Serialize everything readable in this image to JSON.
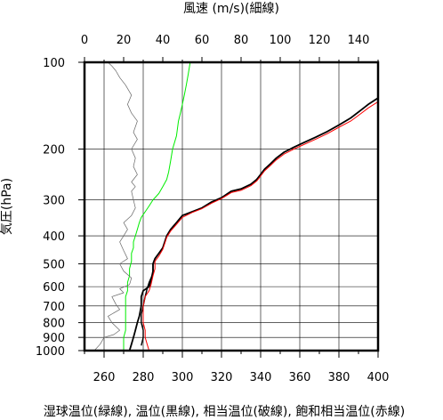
{
  "chart_data": {
    "type": "line",
    "top_axis": {
      "label": "風速 (m/s)(細線)",
      "range": [
        0,
        150
      ],
      "ticks": [
        0,
        20,
        40,
        60,
        80,
        100,
        120,
        140
      ]
    },
    "x_axis": {
      "label": "湿球温位(緑線), 温位(黒線), 相当温位(破線), 飽和相当温位(赤線)",
      "range": [
        250,
        400
      ],
      "ticks": [
        260,
        280,
        300,
        320,
        340,
        360,
        380,
        400
      ]
    },
    "y_axis": {
      "label": "気圧(hPa)",
      "scale": "log",
      "reversed": true,
      "range": [
        100,
        1000
      ],
      "ticks": [
        100,
        200,
        300,
        400,
        500,
        600,
        700,
        800,
        900,
        1000
      ]
    },
    "grid": true,
    "series": [
      {
        "color": "#000000",
        "axis": "bottom",
        "points": [
          [
            273,
            1000
          ],
          [
            274,
            950
          ],
          [
            275,
            900
          ],
          [
            276,
            850
          ],
          [
            277,
            800
          ],
          [
            278,
            760
          ],
          [
            279,
            700
          ],
          [
            279,
            650
          ],
          [
            280,
            620
          ],
          [
            283,
            600
          ],
          [
            284,
            570
          ],
          [
            285,
            530
          ],
          [
            285,
            500
          ],
          [
            286,
            480
          ],
          [
            288,
            460
          ],
          [
            290,
            440
          ],
          [
            291,
            420
          ],
          [
            292,
            400
          ],
          [
            294,
            380
          ],
          [
            297,
            360
          ],
          [
            300,
            340
          ],
          [
            305,
            330
          ],
          [
            310,
            320
          ],
          [
            315,
            305
          ],
          [
            320,
            295
          ],
          [
            325,
            280
          ],
          [
            330,
            275
          ],
          [
            335,
            265
          ],
          [
            338,
            255
          ],
          [
            340,
            245
          ],
          [
            342,
            235
          ],
          [
            345,
            225
          ],
          [
            348,
            215
          ],
          [
            352,
            205
          ],
          [
            357,
            197
          ],
          [
            362,
            190
          ],
          [
            368,
            182
          ],
          [
            374,
            174
          ],
          [
            380,
            165
          ],
          [
            386,
            156
          ],
          [
            391,
            147
          ],
          [
            395,
            140
          ],
          [
            400,
            133
          ]
        ]
      },
      {
        "color": "#000000",
        "axis": "bottom",
        "points": [
          [
            279,
            960
          ],
          [
            280,
            900
          ],
          [
            280,
            850
          ],
          [
            279,
            800
          ],
          [
            279,
            750
          ],
          [
            280,
            700
          ],
          [
            281,
            650
          ],
          [
            282,
            610
          ],
          [
            283,
            580
          ],
          [
            285,
            540
          ],
          [
            285,
            500
          ],
          [
            286,
            480
          ],
          [
            288,
            460
          ],
          [
            290,
            440
          ],
          [
            291,
            420
          ],
          [
            292,
            400
          ],
          [
            294,
            380
          ],
          [
            297,
            360
          ],
          [
            300,
            340
          ],
          [
            305,
            330
          ],
          [
            310,
            320
          ],
          [
            315,
            305
          ],
          [
            320,
            295
          ],
          [
            325,
            280
          ],
          [
            330,
            275
          ],
          [
            335,
            265
          ],
          [
            338,
            255
          ],
          [
            340,
            245
          ],
          [
            342,
            235
          ],
          [
            345,
            225
          ],
          [
            348,
            215
          ],
          [
            352,
            205
          ],
          [
            357,
            197
          ],
          [
            362,
            190
          ],
          [
            368,
            182
          ],
          [
            374,
            174
          ],
          [
            380,
            165
          ],
          [
            386,
            156
          ],
          [
            391,
            147
          ],
          [
            395,
            140
          ],
          [
            400,
            133
          ]
        ]
      },
      {
        "color": "#ff0000",
        "axis": "bottom",
        "points": [
          [
            283,
            1000
          ],
          [
            282,
            950
          ],
          [
            281,
            900
          ],
          [
            281,
            850
          ],
          [
            280,
            800
          ],
          [
            280,
            750
          ],
          [
            280,
            700
          ],
          [
            281,
            650
          ],
          [
            283,
            620
          ],
          [
            284,
            590
          ],
          [
            285,
            550
          ],
          [
            286,
            520
          ],
          [
            286,
            490
          ],
          [
            288,
            470
          ],
          [
            290,
            445
          ],
          [
            291,
            425
          ],
          [
            292,
            405
          ],
          [
            294,
            385
          ],
          [
            297,
            365
          ],
          [
            300,
            345
          ],
          [
            305,
            332
          ],
          [
            310,
            322
          ],
          [
            315,
            308
          ],
          [
            320,
            297
          ],
          [
            325,
            283
          ],
          [
            330,
            278
          ],
          [
            335,
            268
          ],
          [
            338,
            258
          ],
          [
            340,
            248
          ],
          [
            342,
            238
          ],
          [
            345,
            228
          ],
          [
            348,
            218
          ],
          [
            352,
            208
          ],
          [
            357,
            200
          ],
          [
            362,
            193
          ],
          [
            368,
            185
          ],
          [
            374,
            177
          ],
          [
            380,
            168
          ],
          [
            386,
            160
          ],
          [
            391,
            151
          ],
          [
            395,
            144
          ],
          [
            400,
            137
          ]
        ]
      },
      {
        "color": "#00ee00",
        "axis": "bottom",
        "points": [
          [
            270,
            1000
          ],
          [
            270,
            950
          ],
          [
            270,
            900
          ],
          [
            271,
            850
          ],
          [
            271,
            800
          ],
          [
            271,
            750
          ],
          [
            271,
            700
          ],
          [
            271,
            650
          ],
          [
            272,
            620
          ],
          [
            272,
            580
          ],
          [
            273,
            550
          ],
          [
            273,
            520
          ],
          [
            274,
            490
          ],
          [
            274,
            460
          ],
          [
            275,
            440
          ],
          [
            275,
            420
          ],
          [
            276,
            400
          ],
          [
            277,
            380
          ],
          [
            278,
            360
          ],
          [
            279,
            345
          ],
          [
            281,
            330
          ],
          [
            283,
            315
          ],
          [
            285,
            300
          ],
          [
            288,
            285
          ],
          [
            290,
            270
          ],
          [
            292,
            255
          ],
          [
            293,
            240
          ],
          [
            294,
            220
          ],
          [
            295,
            200
          ],
          [
            297,
            180
          ],
          [
            298,
            160
          ],
          [
            299,
            150
          ],
          [
            300,
            140
          ],
          [
            301,
            130
          ],
          [
            302,
            120
          ],
          [
            303,
            110
          ],
          [
            304,
            100
          ]
        ]
      },
      {
        "color": "#666666",
        "axis": "top",
        "points": [
          [
            5,
            1000
          ],
          [
            8,
            950
          ],
          [
            10,
            900
          ],
          [
            15,
            880
          ],
          [
            18,
            850
          ],
          [
            14,
            800
          ],
          [
            12,
            760
          ],
          [
            18,
            720
          ],
          [
            16,
            690
          ],
          [
            14,
            650
          ],
          [
            20,
            630
          ],
          [
            18,
            610
          ],
          [
            23,
            590
          ],
          [
            24,
            560
          ],
          [
            20,
            530
          ],
          [
            18,
            500
          ],
          [
            22,
            480
          ],
          [
            20,
            450
          ],
          [
            18,
            420
          ],
          [
            20,
            400
          ],
          [
            22,
            380
          ],
          [
            20,
            360
          ],
          [
            24,
            340
          ],
          [
            26,
            320
          ],
          [
            25,
            300
          ],
          [
            24,
            280
          ],
          [
            26,
            270
          ],
          [
            24,
            260
          ],
          [
            27,
            245
          ],
          [
            25,
            230
          ],
          [
            26,
            215
          ],
          [
            24,
            200
          ],
          [
            27,
            185
          ],
          [
            25,
            175
          ],
          [
            27,
            160
          ],
          [
            24,
            150
          ],
          [
            22,
            140
          ],
          [
            24,
            130
          ],
          [
            21,
            120
          ],
          [
            18,
            113
          ],
          [
            16,
            107
          ],
          [
            14,
            103
          ],
          [
            12,
            100
          ]
        ]
      }
    ]
  }
}
